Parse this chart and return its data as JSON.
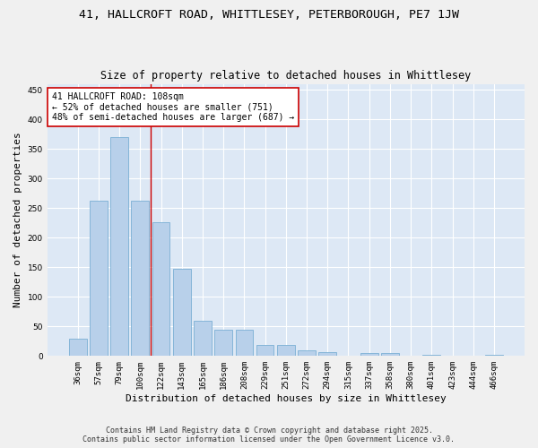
{
  "title1": "41, HALLCROFT ROAD, WHITTLESEY, PETERBOROUGH, PE7 1JW",
  "title2": "Size of property relative to detached houses in Whittlesey",
  "xlabel": "Distribution of detached houses by size in Whittlesey",
  "ylabel": "Number of detached properties",
  "categories": [
    "36sqm",
    "57sqm",
    "79sqm",
    "100sqm",
    "122sqm",
    "143sqm",
    "165sqm",
    "186sqm",
    "208sqm",
    "229sqm",
    "251sqm",
    "272sqm",
    "294sqm",
    "315sqm",
    "337sqm",
    "358sqm",
    "380sqm",
    "401sqm",
    "423sqm",
    "444sqm",
    "466sqm"
  ],
  "values": [
    30,
    262,
    370,
    262,
    226,
    148,
    60,
    45,
    45,
    18,
    18,
    10,
    6,
    0,
    5,
    5,
    0,
    2,
    0,
    0,
    2
  ],
  "bar_color": "#b8d0ea",
  "bar_edge_color": "#7aafd4",
  "vline_color": "#cc0000",
  "annotation_text": "41 HALLCROFT ROAD: 108sqm\n← 52% of detached houses are smaller (751)\n48% of semi-detached houses are larger (687) →",
  "annotation_box_facecolor": "#ffffff",
  "annotation_box_edgecolor": "#cc0000",
  "ylim": [
    0,
    460
  ],
  "yticks": [
    0,
    50,
    100,
    150,
    200,
    250,
    300,
    350,
    400,
    450
  ],
  "bg_color": "#dde8f5",
  "grid_color": "#ffffff",
  "fig_facecolor": "#f0f0f0",
  "footer1": "Contains HM Land Registry data © Crown copyright and database right 2025.",
  "footer2": "Contains public sector information licensed under the Open Government Licence v3.0.",
  "title1_fontsize": 9.5,
  "title2_fontsize": 8.5,
  "xlabel_fontsize": 8,
  "ylabel_fontsize": 8,
  "tick_fontsize": 6.5,
  "annotation_fontsize": 7,
  "footer_fontsize": 6
}
